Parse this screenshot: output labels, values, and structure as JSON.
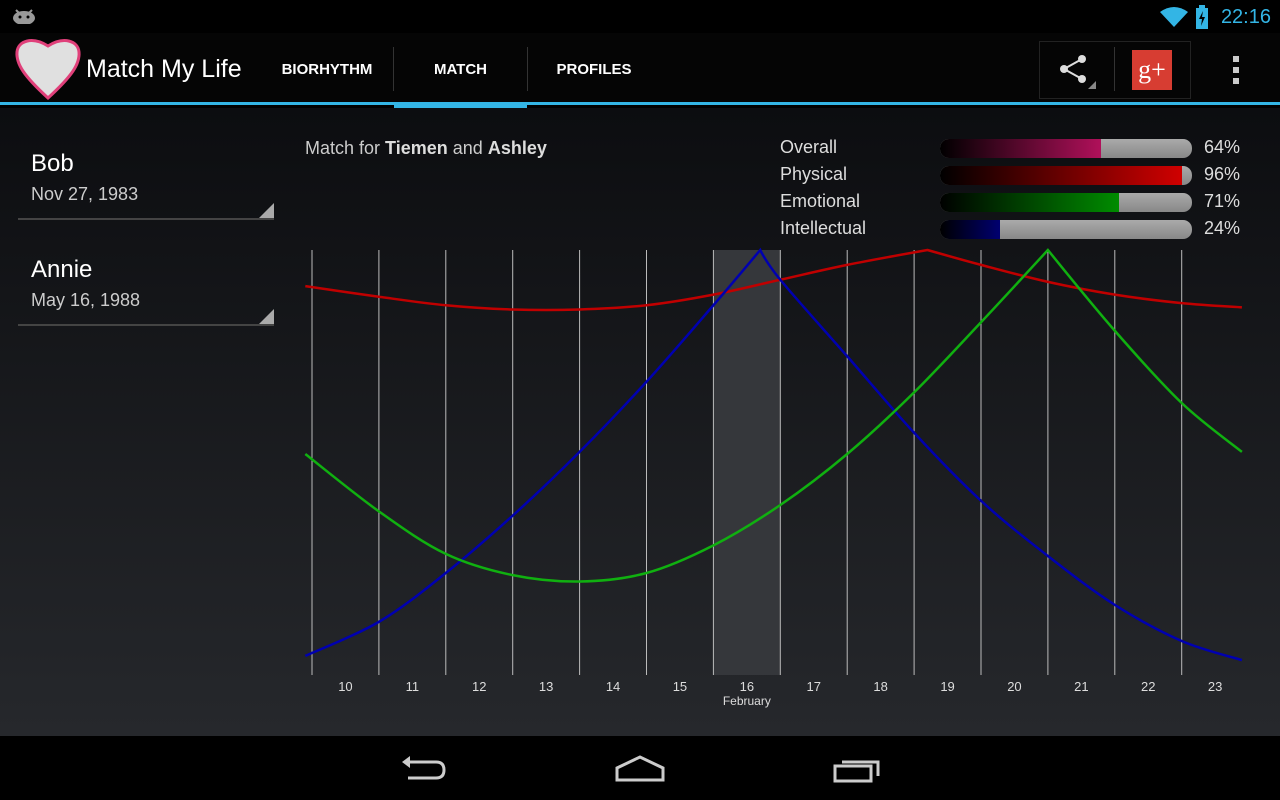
{
  "status": {
    "time": "22:16"
  },
  "app": {
    "title": "Match My Life"
  },
  "tabs": [
    {
      "label": "BIORHYTHM"
    },
    {
      "label": "MATCH"
    },
    {
      "label": "PROFILES"
    }
  ],
  "profiles": [
    {
      "name": "Bob",
      "date": "Nov 27, 1983"
    },
    {
      "name": "Annie",
      "date": "May 16, 1988"
    }
  ],
  "match": {
    "prefix": "Match for",
    "name1": "Tiemen",
    "and": "and",
    "name2": "Ashley"
  },
  "metrics": [
    {
      "label": "Overall",
      "value": 64,
      "pct": "64%",
      "color": "#b0105a"
    },
    {
      "label": "Physical",
      "value": 96,
      "pct": "96%",
      "color": "#d00000"
    },
    {
      "label": "Emotional",
      "value": 71,
      "pct": "71%",
      "color": "#008c00"
    },
    {
      "label": "Intellectual",
      "value": 24,
      "pct": "24%",
      "color": "#000070"
    }
  ],
  "chart_data": {
    "type": "line",
    "xlim": [
      9.9,
      23.9
    ],
    "ylim": [
      -1,
      1
    ],
    "x_ticks": [
      "10",
      "11",
      "12",
      "13",
      "14",
      "15",
      "16",
      "17",
      "18",
      "19",
      "20",
      "21",
      "22",
      "23"
    ],
    "x_label": "February",
    "highlight_day": 16,
    "series": [
      {
        "color": "#c00000",
        "points": [
          [
            9.9,
            0.83
          ],
          [
            11,
            0.78
          ],
          [
            12,
            0.74
          ],
          [
            13,
            0.72
          ],
          [
            14,
            0.72
          ],
          [
            15,
            0.74
          ],
          [
            16,
            0.79
          ],
          [
            17,
            0.86
          ],
          [
            18,
            0.93
          ],
          [
            19.2,
            1.0
          ],
          [
            20,
            0.93
          ],
          [
            21,
            0.85
          ],
          [
            22,
            0.79
          ],
          [
            23,
            0.75
          ],
          [
            23.9,
            0.73
          ]
        ]
      },
      {
        "color": "#0000b0",
        "points": [
          [
            9.9,
            -0.91
          ],
          [
            11,
            -0.75
          ],
          [
            12,
            -0.52
          ],
          [
            13,
            -0.25
          ],
          [
            14,
            0.05
          ],
          [
            15,
            0.38
          ],
          [
            16,
            0.74
          ],
          [
            16.7,
            1.0
          ],
          [
            17,
            0.86
          ],
          [
            18,
            0.5
          ],
          [
            19,
            0.14
          ],
          [
            20,
            -0.18
          ],
          [
            21,
            -0.44
          ],
          [
            22,
            -0.67
          ],
          [
            23,
            -0.84
          ],
          [
            23.9,
            -0.93
          ]
        ]
      },
      {
        "color": "#10b010",
        "points": [
          [
            9.9,
            0.04
          ],
          [
            11,
            -0.23
          ],
          [
            12,
            -0.43
          ],
          [
            13,
            -0.53
          ],
          [
            14,
            -0.56
          ],
          [
            15,
            -0.52
          ],
          [
            16,
            -0.39
          ],
          [
            17,
            -0.2
          ],
          [
            18,
            0.04
          ],
          [
            19,
            0.33
          ],
          [
            20,
            0.66
          ],
          [
            21,
            1.0
          ],
          [
            22,
            0.62
          ],
          [
            23,
            0.28
          ],
          [
            23.9,
            0.05
          ]
        ]
      }
    ]
  },
  "icons": {
    "share": "share-icon",
    "gplus": "google-plus-icon",
    "overflow": "overflow-menu-icon"
  }
}
